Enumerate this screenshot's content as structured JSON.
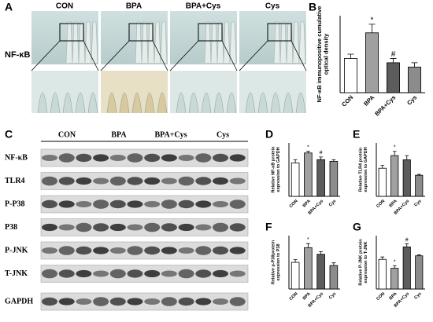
{
  "figure": {
    "panel_a": {
      "label": "A",
      "columns": [
        "CON",
        "BPA",
        "BPA+Cys",
        "Cys"
      ],
      "row_label": "NF-κB"
    },
    "panel_c": {
      "label": "C",
      "groups": [
        "CON",
        "BPA",
        "BPA+Cys",
        "Cys"
      ],
      "rows": [
        "NF-κB",
        "TLR4",
        "P-P38",
        "P38",
        "P-JNK",
        "T-JNK",
        "GAPDH"
      ]
    }
  },
  "chart_data": [
    {
      "type": "bar",
      "panel": "B",
      "ylabel": [
        "NF-κB immunopositive cumulative",
        "optical density"
      ],
      "categories": [
        "CON",
        "BPA",
        "BPA+Cys",
        "Cys"
      ],
      "values": [
        16,
        28,
        14,
        12
      ],
      "errors": [
        2,
        4,
        2,
        2
      ],
      "annotations": [
        null,
        "*",
        "#",
        null
      ],
      "colors": [
        "#ffffff",
        "#a0a0a0",
        "#5c5c5c",
        "#8c8c8c"
      ],
      "ylim": [
        0,
        36
      ]
    },
    {
      "type": "bar",
      "panel": "D",
      "ylabel": [
        "Relative NF-κB protein",
        "expression to GAPDH"
      ],
      "categories": [
        "CON",
        "BPA",
        "BPA+Cys",
        "Cys"
      ],
      "values": [
        1.0,
        1.3,
        1.1,
        1.05
      ],
      "errors": [
        0.1,
        0.05,
        0.08,
        0.05
      ],
      "annotations": [
        null,
        "*",
        "#",
        null
      ],
      "colors": [
        "#ffffff",
        "#a0a0a0",
        "#5c5c5c",
        "#8c8c8c"
      ],
      "ylim": [
        0,
        1.6
      ]
    },
    {
      "type": "bar",
      "panel": "E",
      "ylabel": [
        "Relative TLR4 protein",
        "expression to GAPDH"
      ],
      "categories": [
        "CON",
        "BPA",
        "BPA+Cys",
        "Cys"
      ],
      "values": [
        1.0,
        1.45,
        1.3,
        0.75
      ],
      "errors": [
        0.1,
        0.15,
        0.15,
        0.03
      ],
      "annotations": [
        null,
        "*",
        null,
        null
      ],
      "colors": [
        "#ffffff",
        "#a0a0a0",
        "#5c5c5c",
        "#8c8c8c"
      ],
      "ylim": [
        0,
        1.9
      ]
    },
    {
      "type": "bar",
      "panel": "F",
      "ylabel": [
        "Relative p-P38protein",
        "expression to P38"
      ],
      "categories": [
        "CON",
        "BPA",
        "BPA+Cys",
        "Cys"
      ],
      "values": [
        1.0,
        1.55,
        1.3,
        0.88
      ],
      "errors": [
        0.1,
        0.15,
        0.1,
        0.1
      ],
      "annotations": [
        null,
        "*",
        null,
        null
      ],
      "colors": [
        "#ffffff",
        "#a0a0a0",
        "#5c5c5c",
        "#8c8c8c"
      ],
      "ylim": [
        0,
        2.0
      ]
    },
    {
      "type": "bar",
      "panel": "G",
      "ylabel": [
        "Relative P-JNK protein",
        "expression to T-JNK"
      ],
      "categories": [
        "CON",
        "BPA",
        "BPA+Cys",
        "Cys"
      ],
      "values": [
        1.0,
        0.7,
        1.42,
        1.12
      ],
      "errors": [
        0.08,
        0.08,
        0.1,
        0.03
      ],
      "annotations": [
        null,
        "*",
        "#",
        null
      ],
      "colors": [
        "#ffffff",
        "#a0a0a0",
        "#5c5c5c",
        "#8c8c8c"
      ],
      "ylim": [
        0,
        1.8
      ]
    }
  ]
}
